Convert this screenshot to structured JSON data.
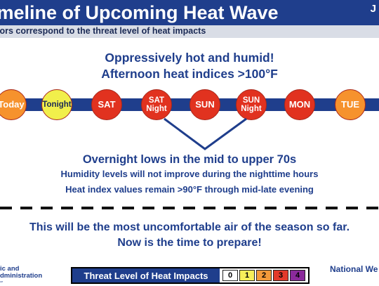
{
  "header": {
    "title": "imeline of Upcoming Heat Wave",
    "corner_text": "J"
  },
  "subheader": "lors correspond to the threat level of heat impacts",
  "day_headline": {
    "line1": "Oppressively hot and humid!",
    "line2": "Afternoon heat indices >100°F"
  },
  "timeline": [
    {
      "label": "Today",
      "color": "#f6922d",
      "text_color": "#ffffff"
    },
    {
      "label": "Tonight",
      "color": "#f1ef4b",
      "text_color": "#1b2a55"
    },
    {
      "label": "SAT",
      "color": "#e1321f",
      "text_color": "#ffffff"
    },
    {
      "label": "SAT Night",
      "color": "#e1321f",
      "text_color": "#ffffff"
    },
    {
      "label": "SUN",
      "color": "#e1321f",
      "text_color": "#ffffff"
    },
    {
      "label": "SUN Night",
      "color": "#e1321f",
      "text_color": "#ffffff"
    },
    {
      "label": "MON",
      "color": "#e1321f",
      "text_color": "#ffffff"
    },
    {
      "label": "TUE",
      "color": "#f6922d",
      "text_color": "#ffffff"
    }
  ],
  "night_headline": {
    "line1": "Overnight lows in the mid to upper 70s",
    "line2": "Humidity levels will not improve during the nighttime hours",
    "line3": "Heat index values remain >90°F through mid-late evening"
  },
  "closing": {
    "line1": "This will be the most uncomfortable air of the season so far.",
    "line2": "Now is the time to prepare!"
  },
  "footer": {
    "org_line1": "ic and",
    "org_line2": "dministration",
    "org_tiny": "ce",
    "legend_label": "Threat Level of Heat Impacts",
    "levels": [
      {
        "value": "0",
        "color": "#ffffff"
      },
      {
        "value": "1",
        "color": "#f6ef5a"
      },
      {
        "value": "2",
        "color": "#f39a3a"
      },
      {
        "value": "3",
        "color": "#e2392a"
      },
      {
        "value": "4",
        "color": "#8b2a9c"
      }
    ],
    "right_text": "National We"
  }
}
